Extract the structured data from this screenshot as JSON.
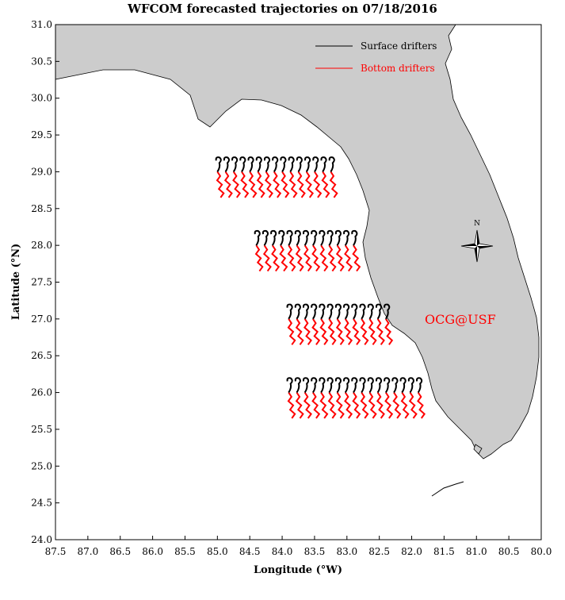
{
  "map": {
    "title": "WFCOM forecasted trajectories on 07/18/2016",
    "xlabel": "Longitude (°W)",
    "ylabel": "Latitude (°N)",
    "watermark": "OCG@USF",
    "compass_label": "N",
    "land_color": "#cccccc",
    "x_ticks": [
      "87.5",
      "87.0",
      "86.5",
      "86.0",
      "85.5",
      "85.0",
      "84.5",
      "84.0",
      "83.5",
      "83.0",
      "82.5",
      "82.0",
      "81.5",
      "81.0",
      "80.5",
      "80.0"
    ],
    "y_ticks": [
      "31.0",
      "30.5",
      "30.0",
      "29.5",
      "29.0",
      "28.5",
      "28.0",
      "27.5",
      "27.0",
      "26.5",
      "26.0",
      "25.5",
      "25.0",
      "24.5",
      "24.0"
    ],
    "legend": [
      {
        "label": "Surface drifters",
        "color": "#000000"
      },
      {
        "label": "Bottom drifters",
        "color": "#ff0000"
      }
    ]
  },
  "chart_data": {
    "type": "trajectory-map",
    "x_range": [
      87.5,
      80.0
    ],
    "y_range": [
      24.0,
      31.0
    ],
    "release_lines": [
      {
        "lat": 29.0,
        "lon_start": 85.0,
        "lon_end": 83.25
      },
      {
        "lat": 28.0,
        "lon_start": 84.4,
        "lon_end": 82.9
      },
      {
        "lat": 27.0,
        "lon_start": 83.9,
        "lon_end": 82.4
      },
      {
        "lat": 26.0,
        "lon_start": 83.9,
        "lon_end": 81.9
      }
    ],
    "bottom_drift": {
      "dlon": 0.08,
      "dlat": -0.35
    },
    "surface_drift": {
      "dlon": 0.03,
      "dlat": 0.12
    }
  }
}
